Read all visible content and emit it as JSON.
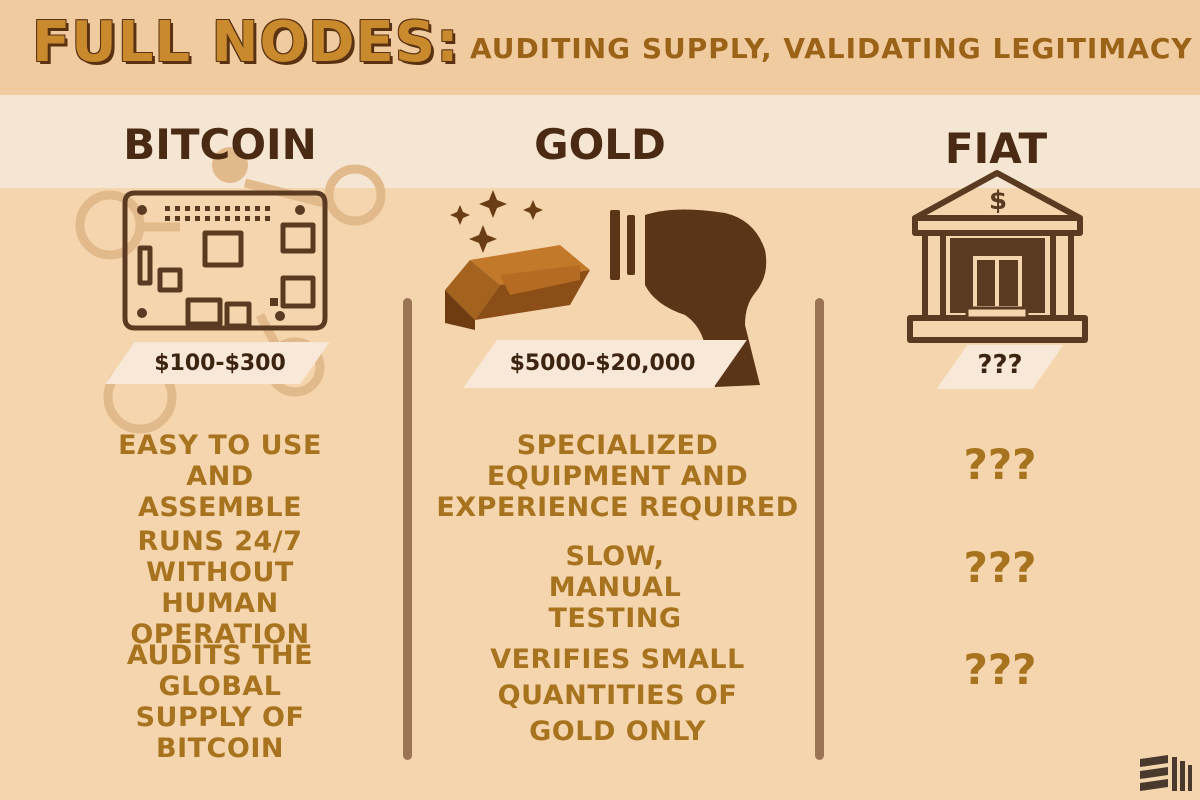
{
  "header": {
    "title": "FULL NODES:",
    "subtitle": "AUDITING SUPPLY, VALIDATING LEGITIMACY"
  },
  "columns": [
    {
      "heading": "BITCOIN",
      "price": "$100-$300",
      "features": [
        "EASY TO USE AND ASSEMBLE",
        "RUNS 24/7 WITHOUT HUMAN OPERATION",
        "AUDITS THE GLOBAL SUPPLY OF BITCOIN"
      ]
    },
    {
      "heading": "GOLD",
      "price": "$5000-$20,000",
      "features": [
        "SPECIALIZED EQUIPMENT AND EXPERIENCE REQUIRED",
        "SLOW, MANUAL TESTING",
        "VERIFIES SMALL QUANTITIES OF GOLD ONLY"
      ]
    },
    {
      "heading": "FIAT",
      "price": "???",
      "features": [
        "???",
        "???",
        "???"
      ]
    }
  ],
  "icons": {
    "bank_symbol": "$"
  },
  "colors": {
    "background": "#f5d5ad",
    "heading": "#4a2a12",
    "feature_text": "#a8731e",
    "title_fill": "#c98a2e"
  }
}
